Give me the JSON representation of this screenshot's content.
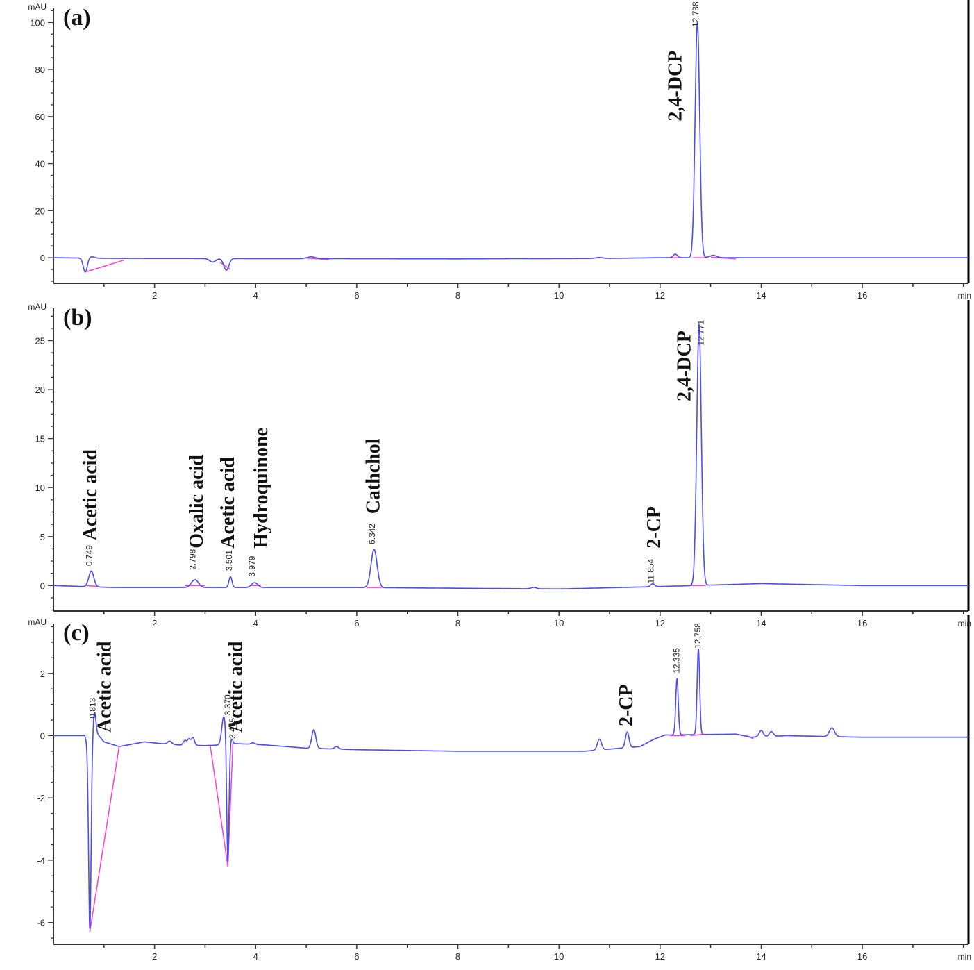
{
  "chart_data": [
    {
      "type": "line",
      "panel_label": "(a)",
      "ylabel": "mAU",
      "xlabel": "min",
      "xlim": [
        0,
        18.1
      ],
      "ylim": [
        -10.9,
        106
      ],
      "xticks": [
        2,
        4,
        6,
        8,
        10,
        12,
        14,
        16
      ],
      "yticks": [
        0,
        20,
        40,
        60,
        80,
        100
      ],
      "baseline": [
        [
          0,
          0
        ],
        [
          1.2,
          -0.3
        ],
        [
          8,
          -0.5
        ],
        [
          11,
          -0.3
        ],
        [
          12,
          0
        ],
        [
          18.1,
          0
        ]
      ],
      "peaks": [
        [
          0.63,
          -6,
          0.04
        ],
        [
          0.75,
          0.6,
          0.06
        ],
        [
          3.15,
          -1.5,
          0.06
        ],
        [
          3.42,
          -5,
          0.05
        ],
        [
          5.1,
          0.8,
          0.08
        ],
        [
          10.8,
          0.4,
          0.07
        ],
        [
          12.3,
          1.5,
          0.04
        ],
        [
          12.738,
          100,
          0.045
        ],
        [
          13.05,
          1,
          0.07
        ]
      ],
      "integration_baselines": [
        [
          [
            0.65,
            -6
          ],
          [
            1.4,
            -1
          ]
        ],
        [
          [
            3.3,
            -2
          ],
          [
            3.5,
            -5
          ]
        ],
        [
          [
            5.0,
            -0.2
          ],
          [
            5.45,
            -0.8
          ]
        ],
        [
          [
            12.2,
            0
          ],
          [
            12.45,
            0
          ]
        ],
        [
          [
            12.65,
            0
          ],
          [
            12.9,
            0
          ]
        ],
        [
          [
            13.0,
            0.2
          ],
          [
            13.5,
            -0.5
          ]
        ]
      ],
      "retention_time_labels": [
        {
          "text": "12.738",
          "t": 12.76,
          "y": 98
        }
      ],
      "compound_labels": [
        {
          "text": "2,4-DCP",
          "t": 12.42,
          "y": 58
        }
      ]
    },
    {
      "type": "line",
      "panel_label": "(b)",
      "ylabel": "mAU",
      "xlabel": "min",
      "xlim": [
        0,
        18.1
      ],
      "ylim": [
        -2.6,
        28.3
      ],
      "xticks": [
        2,
        4,
        6,
        8,
        10,
        12,
        14,
        16
      ],
      "yticks": [
        0,
        5,
        10,
        15,
        20,
        25
      ],
      "baseline": [
        [
          0,
          0
        ],
        [
          1.2,
          -0.2
        ],
        [
          6,
          -0.2
        ],
        [
          10,
          -0.35
        ],
        [
          12,
          -0.1
        ],
        [
          14,
          0.2
        ],
        [
          16,
          0
        ],
        [
          18.1,
          0
        ]
      ],
      "peaks": [
        [
          0.749,
          1.6,
          0.05
        ],
        [
          2.798,
          0.8,
          0.07
        ],
        [
          3.501,
          1.1,
          0.03
        ],
        [
          3.979,
          0.5,
          0.06
        ],
        [
          6.342,
          3.9,
          0.06
        ],
        [
          9.5,
          0.15,
          0.05
        ],
        [
          11.854,
          0.3,
          0.04
        ],
        [
          12.771,
          26.6,
          0.045
        ]
      ],
      "integration_baselines": [
        [
          [
            0.65,
            0
          ],
          [
            0.9,
            -0.1
          ]
        ],
        [
          [
            2.6,
            0
          ],
          [
            3.0,
            0
          ]
        ],
        [
          [
            3.9,
            0
          ],
          [
            4.1,
            0
          ]
        ],
        [
          [
            6.2,
            -0.2
          ],
          [
            6.5,
            -0.2
          ]
        ],
        [
          [
            12.6,
            0
          ],
          [
            12.9,
            0
          ]
        ]
      ],
      "retention_time_labels": [
        {
          "text": "0.749",
          "t": 0.76,
          "y": 2.0
        },
        {
          "text": "2.798",
          "t": 2.81,
          "y": 1.6
        },
        {
          "text": "3.501",
          "t": 3.53,
          "y": 1.5
        },
        {
          "text": "3.979",
          "t": 3.98,
          "y": 0.9
        },
        {
          "text": "6.342",
          "t": 6.36,
          "y": 4.2
        },
        {
          "text": "11.854",
          "t": 11.87,
          "y": 0.2
        },
        {
          "text": "12.771",
          "t": 12.86,
          "y": 24.5
        }
      ],
      "compound_labels": [
        {
          "text": "Acetic acid",
          "t": 0.85,
          "y": 4.6
        },
        {
          "text": "Oxalic acid",
          "t": 2.95,
          "y": 3.8
        },
        {
          "text": "Acetic acid",
          "t": 3.57,
          "y": 3.8
        },
        {
          "text": "Hydroquinone",
          "t": 4.23,
          "y": 3.8
        },
        {
          "text": "Cathchol",
          "t": 6.45,
          "y": 7.3
        },
        {
          "text": "2-CP",
          "t": 12.0,
          "y": 3.8
        },
        {
          "text": "2,4-DCP",
          "t": 12.6,
          "y": 18.8
        }
      ]
    },
    {
      "type": "line",
      "panel_label": "(c)",
      "ylabel": "mAU",
      "xlabel": "min",
      "xlim": [
        0,
        18.1
      ],
      "ylim": [
        -6.7,
        3.6
      ],
      "xticks": [
        2,
        4,
        6,
        8,
        10,
        12,
        14,
        16
      ],
      "yticks": [
        -6,
        -4,
        -2,
        0,
        2
      ],
      "baseline": [
        [
          0,
          0
        ],
        [
          0.62,
          0
        ],
        [
          0.66,
          -0.2
        ],
        [
          0.85,
          0.1
        ],
        [
          1.0,
          -0.2
        ],
        [
          1.3,
          -0.35
        ],
        [
          1.8,
          -0.2
        ],
        [
          2.1,
          -0.25
        ],
        [
          2.5,
          -0.3
        ],
        [
          3.0,
          -0.32
        ],
        [
          3.3,
          -0.3
        ],
        [
          3.55,
          -0.25
        ],
        [
          4.2,
          -0.3
        ],
        [
          5.0,
          -0.4
        ],
        [
          6.0,
          -0.45
        ],
        [
          8.0,
          -0.5
        ],
        [
          10.5,
          -0.5
        ],
        [
          11.6,
          -0.35
        ],
        [
          11.9,
          -0.1
        ],
        [
          12.1,
          0.02
        ],
        [
          13.5,
          0.05
        ],
        [
          13.8,
          -0.05
        ],
        [
          14.5,
          0
        ],
        [
          16,
          -0.05
        ],
        [
          18.1,
          -0.05
        ]
      ],
      "peaks": [
        [
          0.72,
          -6.1,
          0.025
        ],
        [
          0.813,
          0.7,
          0.025
        ],
        [
          2.3,
          0.1,
          0.04
        ],
        [
          2.6,
          0.15,
          0.03
        ],
        [
          2.68,
          0.2,
          0.03
        ],
        [
          2.76,
          0.25,
          0.03
        ],
        [
          3.37,
          0.9,
          0.04
        ],
        [
          3.45,
          -3.9,
          0.022
        ],
        [
          3.53,
          0.15,
          0.02
        ],
        [
          3.95,
          0.05,
          0.04
        ],
        [
          5.15,
          0.6,
          0.04
        ],
        [
          5.6,
          0.08,
          0.04
        ],
        [
          10.8,
          0.35,
          0.04
        ],
        [
          11.35,
          0.5,
          0.035
        ],
        [
          12.335,
          1.8,
          0.025
        ],
        [
          12.758,
          2.75,
          0.025
        ],
        [
          14.0,
          0.2,
          0.04
        ],
        [
          14.2,
          0.15,
          0.04
        ],
        [
          15.4,
          0.28,
          0.05
        ]
      ],
      "integration_baselines": [
        [
          [
            0.72,
            -6.3
          ],
          [
            1.3,
            -0.35
          ]
        ],
        [
          [
            3.1,
            -0.3
          ],
          [
            3.45,
            -4.2
          ]
        ],
        [
          [
            3.45,
            -4.2
          ],
          [
            3.55,
            -0.25
          ]
        ],
        [
          [
            12.2,
            0
          ],
          [
            12.5,
            0
          ]
        ],
        [
          [
            12.6,
            0
          ],
          [
            12.9,
            0.05
          ]
        ],
        [
          [
            13.7,
            0
          ],
          [
            13.85,
            -0.1
          ]
        ]
      ],
      "retention_time_labels": [
        {
          "text": "0.813",
          "t": 0.83,
          "y": 0.55
        },
        {
          "text": "3.370",
          "t": 3.5,
          "y": 0.65
        },
        {
          "text": "3.475",
          "t": 3.6,
          "y": -0.1
        },
        {
          "text": "12.335",
          "t": 12.38,
          "y": 2.0
        },
        {
          "text": "12.758",
          "t": 12.8,
          "y": 2.8
        }
      ],
      "compound_labels": [
        {
          "text": "Acetic acid",
          "t": 1.13,
          "y": 0.1
        },
        {
          "text": "Acetic acid",
          "t": 3.73,
          "y": 0.1
        },
        {
          "text": "2-CP",
          "t": 11.45,
          "y": 0.3
        }
      ]
    }
  ],
  "colors": {
    "trace": "#4b4bf0",
    "integration": "#ff3ccf",
    "axis": "#333333"
  }
}
